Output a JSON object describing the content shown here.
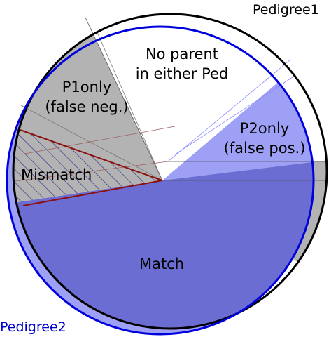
{
  "labels": {
    "pedigree1": "Pedigree1",
    "pedigree2": "Pedigree2",
    "no_parent_line1": "No parent",
    "no_parent_line2": "in either Ped",
    "p1only_line1": "P1only",
    "p1only_line2": "(false neg.)",
    "p2only_line1": "P2only",
    "p2only_line2": "(false pos.)",
    "mismatch": "Mismatch",
    "match": "Match"
  },
  "colors": {
    "pedigree1_outline": "#000000",
    "pedigree2_outline": "#0000dd",
    "pedigree2_fill": "#9da0f5",
    "match_fill": "#6b6dd3",
    "p1only_fill": "#b3b3b3",
    "mismatch_hatch": "#2d2f8a",
    "mismatch_border": "#8b1010",
    "p2only_fill": "#9da0f5",
    "pedigree2_label": "#0000cc"
  }
}
